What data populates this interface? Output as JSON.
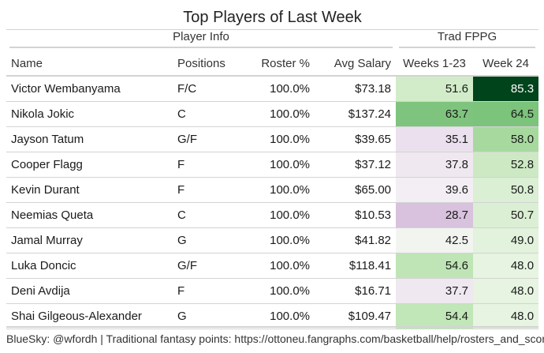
{
  "title": "Top Players of Last Week",
  "spanners": {
    "player_info": "Player Info",
    "trad_fppg": "Trad FPPG"
  },
  "columns": [
    "Name",
    "Positions",
    "Roster %",
    "Avg Salary",
    "Weeks 1-23",
    "Week 24"
  ],
  "rows": [
    {
      "name": "Victor Wembanyama",
      "positions": "F/C",
      "roster": "100.0%",
      "salary": "$73.18",
      "w1": "51.6",
      "w2": "85.3",
      "w1_bg": "#d2ecc9",
      "w2_bg": "#00441b",
      "w2_color": "#ffffff"
    },
    {
      "name": "Nikola Jokic",
      "positions": "C",
      "roster": "100.0%",
      "salary": "$137.24",
      "w1": "63.7",
      "w2": "64.5",
      "w1_bg": "#7fc47e",
      "w2_bg": "#7cc37b"
    },
    {
      "name": "Jayson Tatum",
      "positions": "G/F",
      "roster": "100.0%",
      "salary": "$39.65",
      "w1": "35.1",
      "w2": "58.0",
      "w1_bg": "#ebe0ee",
      "w2_bg": "#a7d99f"
    },
    {
      "name": "Cooper Flagg",
      "positions": "F",
      "roster": "100.0%",
      "salary": "$37.12",
      "w1": "37.8",
      "w2": "52.8",
      "w1_bg": "#efe8f1",
      "w2_bg": "#cde9c4"
    },
    {
      "name": "Kevin Durant",
      "positions": "F",
      "roster": "100.0%",
      "salary": "$65.00",
      "w1": "39.6",
      "w2": "50.8",
      "w1_bg": "#f3eef4",
      "w2_bg": "#daefd4"
    },
    {
      "name": "Neemias Queta",
      "positions": "C",
      "roster": "100.0%",
      "salary": "$10.53",
      "w1": "28.7",
      "w2": "50.7",
      "w1_bg": "#d8c2dd",
      "w2_bg": "#dbefd4"
    },
    {
      "name": "Jamal Murray",
      "positions": "G",
      "roster": "100.0%",
      "salary": "$41.82",
      "w1": "42.5",
      "w2": "49.0",
      "w1_bg": "#f2f4f0",
      "w2_bg": "#e2f2dc"
    },
    {
      "name": "Luka Doncic",
      "positions": "G/F",
      "roster": "100.0%",
      "salary": "$118.41",
      "w1": "54.6",
      "w2": "48.0",
      "w1_bg": "#bfe5b6",
      "w2_bg": "#e6f4e1"
    },
    {
      "name": "Deni Avdija",
      "positions": "F",
      "roster": "100.0%",
      "salary": "$16.71",
      "w1": "37.7",
      "w2": "48.0",
      "w1_bg": "#efe8f1",
      "w2_bg": "#e6f4e1"
    },
    {
      "name": "Shai Gilgeous-Alexander",
      "positions": "G",
      "roster": "100.0%",
      "salary": "$109.47",
      "w1": "54.4",
      "w2": "48.0",
      "w1_bg": "#c1e6b8",
      "w2_bg": "#e6f4e1"
    }
  ],
  "footer": "BlueSky: @wfordh | Traditional fantasy points: https://ottoneu.fangraphs.com/basketball/help/rosters_and_scoring"
}
